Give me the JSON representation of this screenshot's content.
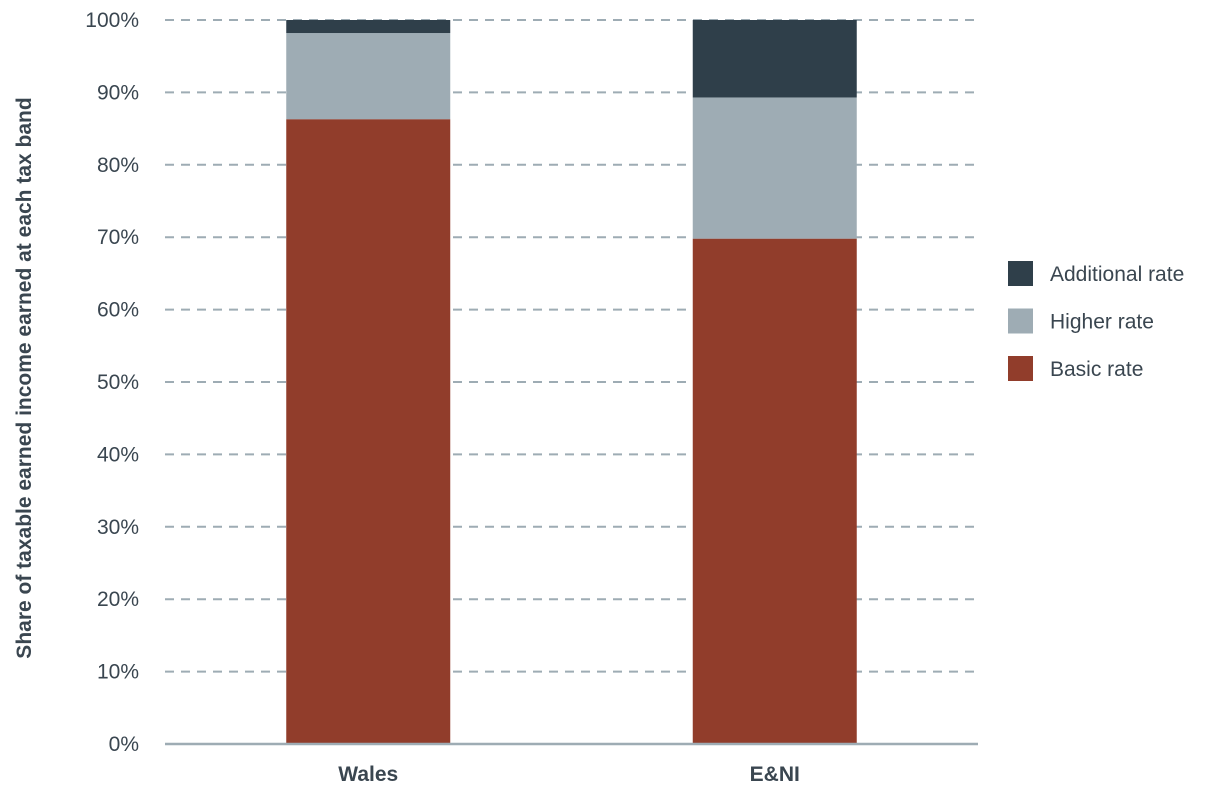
{
  "chart_data": {
    "type": "bar",
    "stacked": true,
    "categories": [
      "Wales",
      "E&NI"
    ],
    "series": [
      {
        "name": "Basic rate",
        "values": [
          86.3,
          69.8
        ],
        "color": "#913d2b"
      },
      {
        "name": "Higher rate",
        "values": [
          11.9,
          19.5
        ],
        "color": "#9eacb4"
      },
      {
        "name": "Additional rate",
        "values": [
          1.8,
          10.7
        ],
        "color": "#2f3f4a"
      }
    ],
    "ylabel": "Share of taxable earned income earned at each tax band",
    "xlabel": "",
    "ylim": [
      0,
      100
    ],
    "yticks": [
      "0%",
      "10%",
      "20%",
      "30%",
      "40%",
      "50%",
      "60%",
      "70%",
      "80%",
      "90%",
      "100%"
    ],
    "grid": true,
    "legend_position": "right",
    "legend_order": [
      "Additional rate",
      "Higher rate",
      "Basic rate"
    ]
  }
}
